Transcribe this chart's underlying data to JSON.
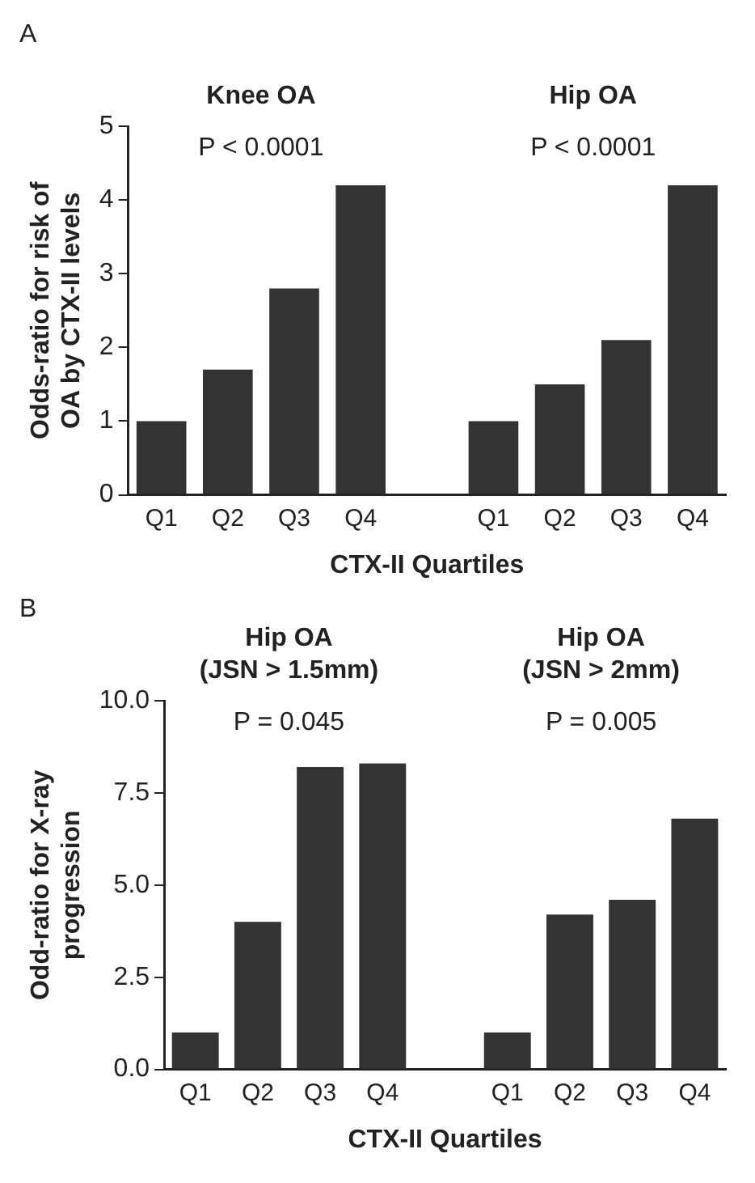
{
  "chart_data": [
    {
      "type": "bar",
      "categories": [
        "Q1",
        "Q2",
        "Q3",
        "Q4",
        null,
        "Q1",
        "Q2",
        "Q3",
        "Q4"
      ],
      "values": [
        1,
        1.7,
        2.8,
        4.2,
        null,
        1,
        1.5,
        2.1,
        4.2
      ],
      "color": "#333333",
      "ylim": [
        0,
        5
      ],
      "yticks": [
        0,
        1,
        2,
        3,
        4,
        5
      ],
      "grid": false,
      "legend": false,
      "xlabel": "CTX-II Quartiles",
      "ylabel": "Odds-ratio for risk of\nOA by CTX-II levels",
      "annotations": [
        "A",
        "Knee OA",
        "Hip OA",
        "P < 0.0001",
        "P < 0.0001"
      ]
    },
    {
      "type": "bar",
      "categories": [
        "Q1",
        "Q2",
        "Q3",
        "Q4",
        null,
        "Q1",
        "Q2",
        "Q3",
        "Q4"
      ],
      "values": [
        1,
        4,
        8.2,
        8.3,
        null,
        1,
        4.2,
        4.6,
        6.8
      ],
      "color": "#333333",
      "ylim": [
        0,
        10
      ],
      "yticks": [
        {
          "value": 0,
          "label": "0.0"
        },
        {
          "value": 2.5,
          "label": "2.5"
        },
        {
          "value": 5,
          "label": "5.0"
        },
        {
          "value": 7.5,
          "label": "7.5"
        },
        {
          "value": 10,
          "label": "10.0"
        }
      ],
      "grid": false,
      "legend": false,
      "xlabel": "CTX-II Quartiles",
      "ylabel": "Odd-ratio for X-ray\nprogression",
      "annotations": [
        "B",
        "Hip OA\n(JSN > 1.5mm)",
        "Hip OA\n(JSN > 2mm)",
        "P = 0.045",
        "P = 0.005"
      ]
    }
  ]
}
